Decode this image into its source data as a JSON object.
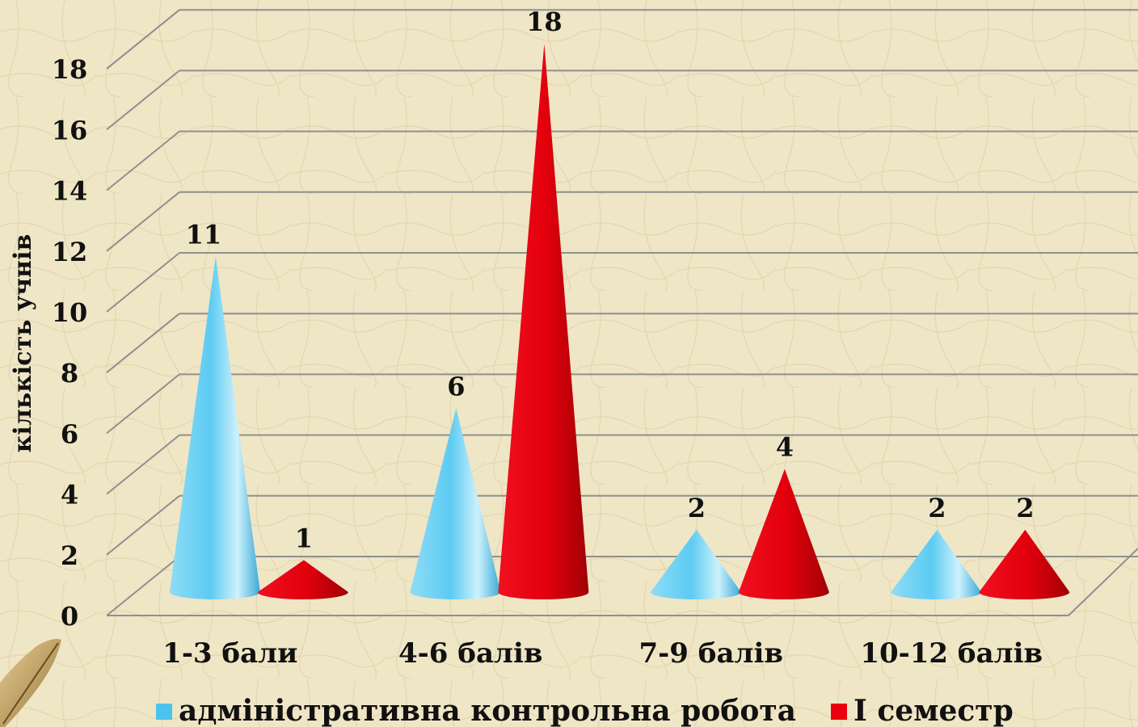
{
  "chart_data": {
    "type": "bar",
    "subtype": "3d-cone",
    "categories": [
      "1-3 бали",
      "4-6 балів",
      "7-9 балів",
      "10-12 балів"
    ],
    "series": [
      {
        "name": "адміністративна контрольна робота",
        "values": [
          11,
          6,
          2,
          2
        ],
        "color": "#4cc3ef"
      },
      {
        "name": "І семестр",
        "values": [
          1,
          18,
          4,
          2
        ],
        "color": "#e8000f"
      }
    ],
    "ylabel": "кількість учнів",
    "ylim": [
      0,
      18
    ],
    "yticks": [
      0,
      2,
      4,
      6,
      8,
      10,
      12,
      14,
      16,
      18
    ],
    "grid": true,
    "legend_position": "bottom"
  },
  "decor": {
    "feather_icon": "feather-icon",
    "background": "parchment"
  }
}
